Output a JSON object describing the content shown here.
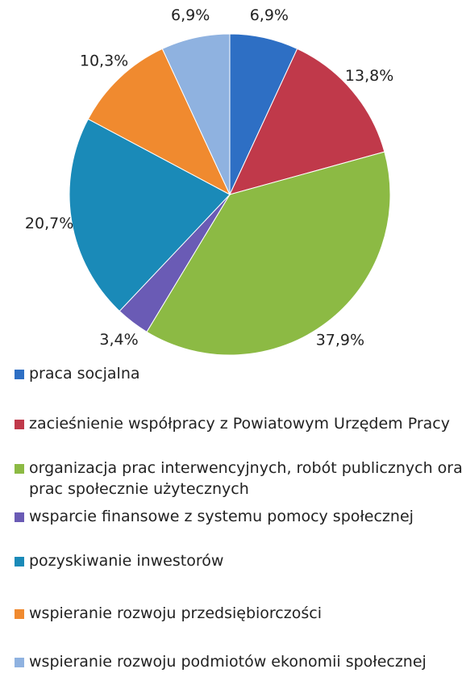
{
  "chart_data": {
    "type": "pie",
    "categories": [
      "praca socjalna",
      "zacieśnienie współpracy z Powiatowym Urzędem Pracy",
      "organizacja prac interwencyjnych, robót publicznych oraz prac społecznie użytecznych",
      "wsparcie finansowe z systemu pomocy społecznej",
      "pozyskiwanie inwestorów",
      "wspieranie rozwoju przedsiębiorczości",
      "wspieranie rozwoju podmiotów ekonomii społecznej"
    ],
    "values": [
      6.9,
      13.8,
      37.9,
      3.4,
      20.7,
      10.3,
      6.9
    ],
    "value_labels": [
      "6,9%",
      "13,8%",
      "37,9%",
      "3,4%",
      "20,7%",
      "10,3%",
      "6,9%"
    ],
    "colors": [
      "#2e6fc4",
      "#c0394a",
      "#8cba44",
      "#6a5bb5",
      "#1a8ab8",
      "#f08a2f",
      "#8fb2e0"
    ]
  }
}
